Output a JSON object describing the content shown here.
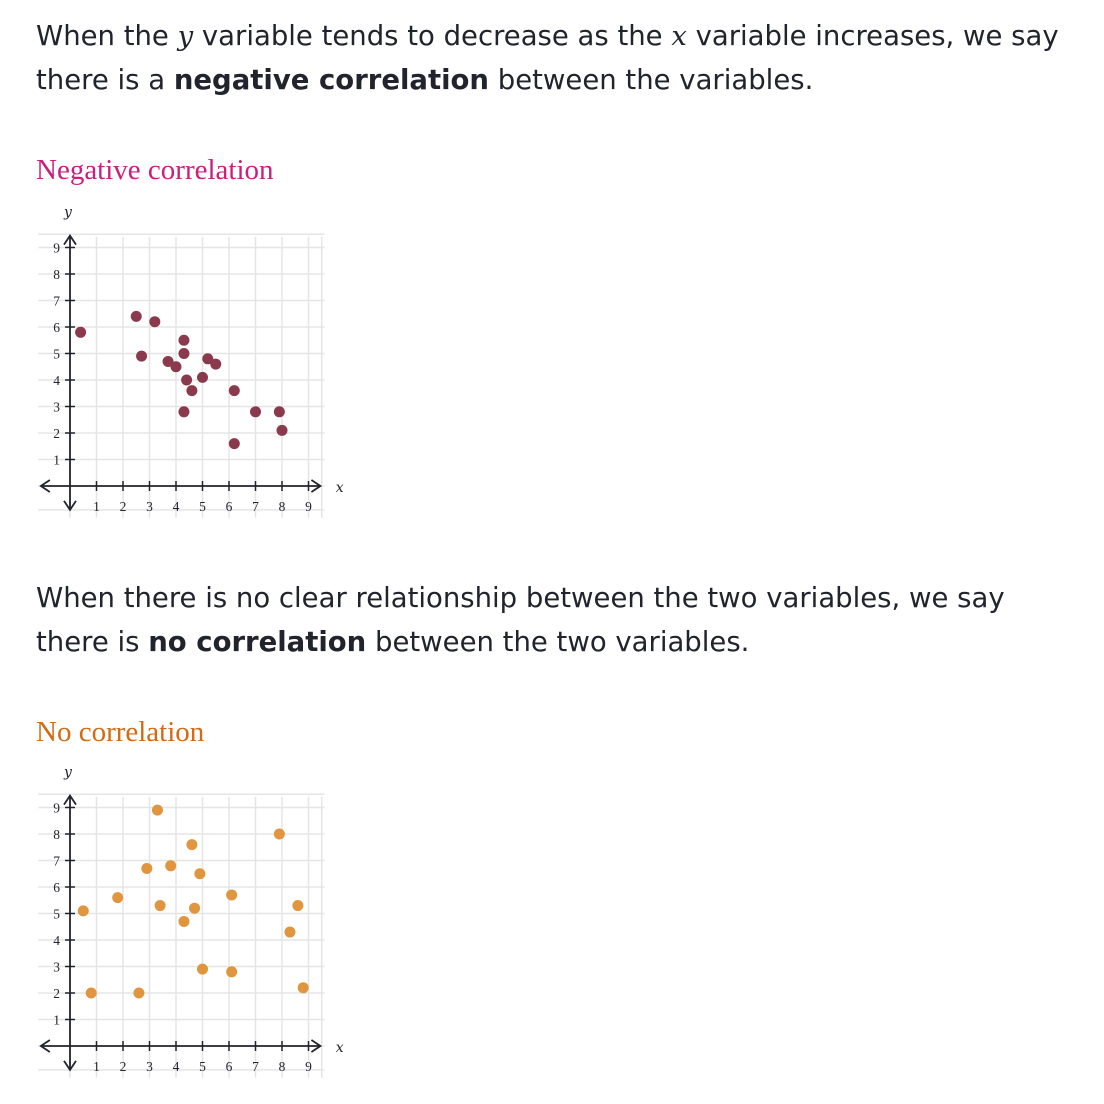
{
  "intro": {
    "p1_pre": "When the",
    "p1_var_y": "y",
    "p1_mid": "variable tends to decrease as the",
    "p1_var_x": "x",
    "p1_post": "variable increases, we say there is a",
    "p1_bold": "negative correlation",
    "p1_end": "between the variables."
  },
  "middle": {
    "p2_pre": "When there is no clear relationship between the two variables, we say there is",
    "p2_bold": "no correlation",
    "p2_end": "between the two variables."
  },
  "chart_data": [
    {
      "type": "scatter",
      "title": "Negative correlation",
      "title_color": "#ca1f7b",
      "point_color": "#8b3a4e",
      "xlabel": "x",
      "ylabel": "y",
      "xlim": [
        0,
        9
      ],
      "ylim": [
        0,
        9
      ],
      "x_ticks": [
        "1",
        "2",
        "3",
        "4",
        "5",
        "6",
        "7",
        "8",
        "9"
      ],
      "y_ticks": [
        "1",
        "2",
        "3",
        "4",
        "5",
        "6",
        "7",
        "8",
        "9"
      ],
      "grid": true,
      "points": [
        [
          0.4,
          5.8
        ],
        [
          2.5,
          6.4
        ],
        [
          2.7,
          4.9
        ],
        [
          3.2,
          6.2
        ],
        [
          3.7,
          4.7
        ],
        [
          4.0,
          4.5
        ],
        [
          4.3,
          5.5
        ],
        [
          4.3,
          5.0
        ],
        [
          4.4,
          4.0
        ],
        [
          4.6,
          3.6
        ],
        [
          4.3,
          2.8
        ],
        [
          5.0,
          4.1
        ],
        [
          5.2,
          4.8
        ],
        [
          5.5,
          4.6
        ],
        [
          6.2,
          3.6
        ],
        [
          6.2,
          1.6
        ],
        [
          7.0,
          2.8
        ],
        [
          7.9,
          2.8
        ],
        [
          8.0,
          2.1
        ]
      ]
    },
    {
      "type": "scatter",
      "title": "No correlation",
      "title_color": "#d46a12",
      "point_color": "#e0953f",
      "xlabel": "x",
      "ylabel": "y",
      "xlim": [
        0,
        9
      ],
      "ylim": [
        0,
        9
      ],
      "x_ticks": [
        "1",
        "2",
        "3",
        "4",
        "5",
        "6",
        "7",
        "8",
        "9"
      ],
      "y_ticks": [
        "1",
        "2",
        "3",
        "4",
        "5",
        "6",
        "7",
        "8",
        "9"
      ],
      "grid": true,
      "points": [
        [
          0.5,
          5.1
        ],
        [
          0.8,
          2.0
        ],
        [
          1.8,
          5.6
        ],
        [
          2.6,
          2.0
        ],
        [
          2.9,
          6.7
        ],
        [
          3.3,
          8.9
        ],
        [
          3.4,
          5.3
        ],
        [
          3.8,
          6.8
        ],
        [
          4.3,
          4.7
        ],
        [
          4.6,
          7.6
        ],
        [
          4.7,
          5.2
        ],
        [
          4.9,
          6.5
        ],
        [
          5.0,
          2.9
        ],
        [
          6.1,
          5.7
        ],
        [
          6.1,
          2.8
        ],
        [
          7.9,
          8.0
        ],
        [
          8.3,
          4.3
        ],
        [
          8.6,
          5.3
        ],
        [
          8.8,
          2.2
        ]
      ]
    }
  ]
}
